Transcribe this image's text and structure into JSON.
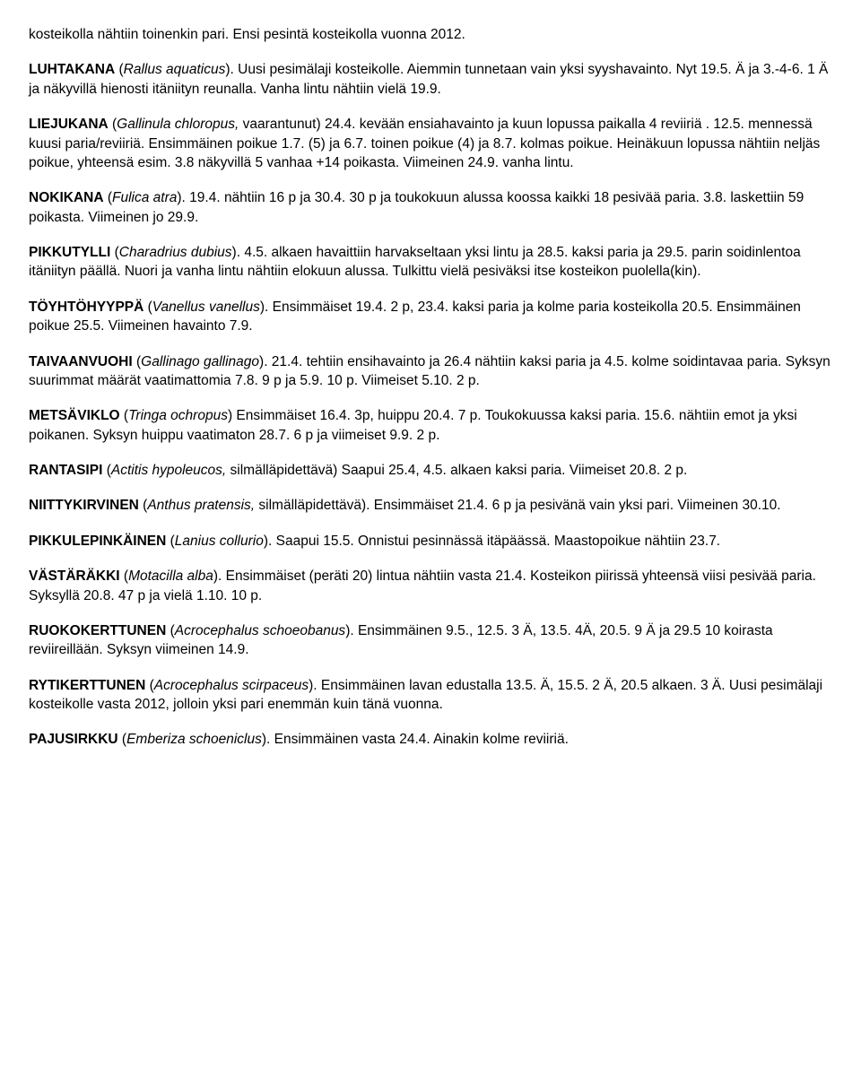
{
  "paragraphs": [
    {
      "intro": "kosteikolla nähtiin toinenkin pari. Ensi pesintä kosteikolla vuonna 2012."
    },
    {
      "species": "LUHTAKANA",
      "sci": "Rallus aquaticus",
      "sci_paren": true,
      "text": ". Uusi pesimälaji kosteikolle. Aiemmin tunnetaan vain yksi syyshavainto. Nyt 19.5. Ä ja 3.-4-6. 1 Ä ja näkyvillä hienosti itäniityn reunalla. Vanha lintu nähtiin vielä 19.9."
    },
    {
      "species": "LIEJUKANA",
      "sci": "Gallinula chloropus,",
      "sci_paren": true,
      "sci_suffix": " vaarantunut)",
      "text": " 24.4. kevään ensiahavainto ja kuun lopussa paikalla 4 reviiriä . 12.5. mennessä kuusi paria/reviiriä. Ensimmäinen poikue 1.7. (5) ja 6.7. toinen poikue (4) ja 8.7. kolmas poikue. Heinäkuun lopussa  nähtiin neljäs poikue, yhteensä esim. 3.8 näkyvillä 5 vanhaa +14 poikasta. Viimeinen 24.9. vanha lintu."
    },
    {
      "species": "NOKIKANA",
      "sci": "Fulica atra",
      "sci_paren": true,
      "text": ". 19.4. nähtiin 16 p ja 30.4. 30 p ja toukokuun alussa koossa kaikki 18 pesivää paria. 3.8. laskettiin 59  poikasta. Viimeinen jo 29.9."
    },
    {
      "species": "PIKKUTYLLI",
      "sci": "Charadrius dubius",
      "sci_paren": true,
      "text": ". 4.5. alkaen havaittiin harvakseltaan yksi lintu ja 28.5. kaksi paria ja 29.5. parin soidinlentoa itäniityn päällä. Nuori  ja vanha lintu nähtiin elokuun alussa. Tulkittu vielä pesiväksi itse kosteikon puolella(kin)."
    },
    {
      "species": "TÖYHTÖHYYPPÄ",
      "sci": "Vanellus vanellus",
      "sci_paren": true,
      "text": ". Ensimmäiset 19.4. 2 p, 23.4. kaksi paria ja kolme paria kosteikolla 20.5. Ensimmäinen poikue 25.5. Viimeinen havainto 7.9."
    },
    {
      "species": "TAIVAANVUOHI",
      "sci": "Gallinago gallinago",
      "sci_paren": true,
      "text": ". 21.4. tehtiin ensihavainto ja 26.4 nähtiin kaksi paria ja 4.5. kolme soidintavaa paria. Syksyn suurimmat määrät vaatimattomia 7.8. 9 p ja 5.9. 10 p. Viimeiset 5.10. 2 p."
    },
    {
      "species": "METSÄVIKLO",
      "sci": "Tringa ochropus",
      "sci_paren": true,
      "sci_close_only": true,
      "text": " Ensimmäiset 16.4. 3p, huippu 20.4. 7 p. Toukokuussa kaksi paria. 15.6. nähtiin emot ja yksi poikanen. Syksyn huippu vaatimaton 28.7. 6 p ja viimeiset 9.9. 2 p."
    },
    {
      "species": "RANTASIPI",
      "sci": "Actitis hypoleucos,",
      "sci_paren": true,
      "sci_suffix": " silmälläpidettävä)",
      "text": " Saapui 25.4, 4.5. alkaen kaksi  paria. Viimeiset 20.8. 2 p."
    },
    {
      "species": "NIITTYKIRVINEN",
      "sci": "Anthus pratensis,",
      "sci_paren": true,
      "sci_suffix": " silmälläpidettävä)",
      "text": ". Ensimmäiset 21.4. 6 p ja pesivänä vain yksi pari. Viimeinen 30.10."
    },
    {
      "species": "PIKKULEPINKÄINEN",
      "sci": "Lanius collurio",
      "sci_paren": true,
      "text": ". Saapui 15.5. Onnistui pesinnässä itäpäässä. Maastopoikue nähtiin 23.7."
    },
    {
      "species": "VÄSTÄRÄKKI",
      "sci": "Motacilla alba",
      "sci_paren": true,
      "text": ". Ensimmäiset (peräti 20) lintua nähtiin vasta 21.4. Kosteikon piirissä yhteensä viisi pesivää paria. Syksyllä 20.8. 47 p ja vielä 1.10. 10 p."
    },
    {
      "species": "RUOKOKERTTUNEN",
      "sci": "Acrocephalus schoeobanus",
      "sci_paren": true,
      "text": ". Ensimmäinen 9.5., 12.5. 3 Ä, 13.5. 4Ä, 20.5. 9 Ä ja 29.5 10 koirasta reviireillään. Syksyn viimeinen 14.9."
    },
    {
      "species": "RYTIKERTTUNEN",
      "sci": "Acrocephalus scirpaceus",
      "sci_paren": true,
      "text": ". Ensimmäinen lavan edustalla 13.5. Ä, 15.5. 2 Ä, 20.5 alkaen. 3 Ä. Uusi pesimälaji kosteikolle vasta 2012, jolloin yksi pari enemmän kuin tänä vuonna."
    },
    {
      "species": "PAJUSIRKKU",
      "sci": "Emberiza schoeniclus",
      "sci_paren": true,
      "text": ". Ensimmäinen vasta 24.4. Ainakin kolme reviiriä."
    }
  ]
}
